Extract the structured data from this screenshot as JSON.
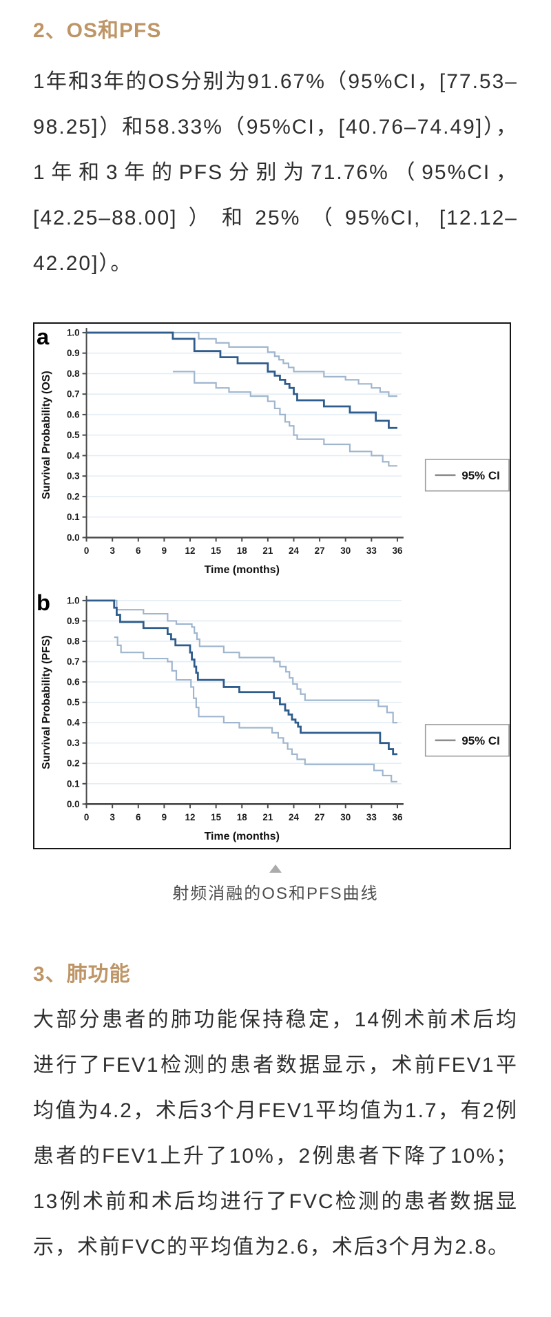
{
  "sections": {
    "os_pfs": {
      "heading": "2、OS和PFS",
      "paragraph": "1年和3年的OS分别为91.67%（95%CI，[77.53–98.25]）和58.33%（95%CI，[40.76–74.49]），1年和3年的PFS分别为71.76%（95%CI，[42.25–88.00]）和25%（95%CI, [12.12–42.20]）。"
    },
    "lung": {
      "heading": "3、肺功能",
      "paragraph": "大部分患者的肺功能保持稳定，14例术前术后均进行了FEV1检测的患者数据显示，术前FEV1平均值为4.2，术后3个月FEV1平均值为1.7，有2例患者的FEV1上升了10%，2例患者下降了10%；13例术前和术后均进行了FVC检测的患者数据显示，术前FVC的平均值为2.6，术后3个月为2.8。"
    }
  },
  "figure": {
    "caption": "射频消融的OS和PFS曲线"
  },
  "colors": {
    "heading": "#BE9566",
    "body_text": "#2E2E2E",
    "caption_text": "#4D4D4D",
    "curve_main": "#2E5C8C",
    "curve_ci": "#9FB6CE",
    "gridline": "#E3EDF4",
    "axis": "#4A4A4A",
    "legend_line": "#8C8C8C",
    "legend_border": "#9C9C9C",
    "figure_border": "#151515",
    "arrow": "#ABABAB"
  },
  "chart_data": [
    {
      "type": "line",
      "subtype": "kaplan-meier-step",
      "panel_label": "a",
      "ylabel": "Survival  Probability (OS)",
      "xlabel": "Time (months)",
      "xlim": [
        0,
        36
      ],
      "ylim": [
        0.0,
        1.0
      ],
      "xticks": [
        0,
        3,
        6,
        9,
        12,
        15,
        18,
        21,
        24,
        27,
        30,
        33,
        36
      ],
      "yticks": [
        0.0,
        0.1,
        0.2,
        0.3,
        0.4,
        0.5,
        0.6,
        0.7,
        0.8,
        0.9,
        1.0
      ],
      "grid": true,
      "legend": {
        "label": "95% CI",
        "position": "right-middle"
      },
      "annotations": {
        "os_1yr": "91.67%",
        "os_3yr": "58.33%"
      },
      "series": [
        {
          "name": "OS estimate",
          "role": "main",
          "start": [
            0,
            1.0
          ],
          "end": 36,
          "steps": [
            [
              10,
              0.97
            ],
            [
              12.5,
              0.91
            ],
            [
              15.5,
              0.88
            ],
            [
              17.5,
              0.85
            ],
            [
              21,
              0.81
            ],
            [
              21.8,
              0.79
            ],
            [
              22.4,
              0.77
            ],
            [
              23,
              0.75
            ],
            [
              23.5,
              0.73
            ],
            [
              24,
              0.7
            ],
            [
              24.4,
              0.67
            ],
            [
              27.5,
              0.64
            ],
            [
              30.5,
              0.61
            ],
            [
              33.5,
              0.57
            ],
            [
              35,
              0.535
            ]
          ]
        },
        {
          "name": "95% CI upper",
          "role": "ci",
          "start": [
            0,
            1.0
          ],
          "end": 36,
          "steps": [
            [
              13,
              0.97
            ],
            [
              15,
              0.95
            ],
            [
              16.5,
              0.93
            ],
            [
              21,
              0.905
            ],
            [
              21.8,
              0.885
            ],
            [
              22.3,
              0.868
            ],
            [
              22.8,
              0.85
            ],
            [
              23.4,
              0.83
            ],
            [
              24,
              0.81
            ],
            [
              27.5,
              0.785
            ],
            [
              30,
              0.77
            ],
            [
              31.5,
              0.75
            ],
            [
              33,
              0.73
            ],
            [
              34,
              0.71
            ],
            [
              35,
              0.69
            ]
          ]
        },
        {
          "name": "95% CI lower",
          "role": "ci",
          "start": [
            10,
            0.81
          ],
          "end": 36,
          "steps": [
            [
              12.5,
              0.755
            ],
            [
              15,
              0.73
            ],
            [
              16.5,
              0.71
            ],
            [
              19,
              0.69
            ],
            [
              21,
              0.665
            ],
            [
              21.8,
              0.63
            ],
            [
              22.4,
              0.6
            ],
            [
              23,
              0.565
            ],
            [
              23.5,
              0.545
            ],
            [
              24,
              0.5
            ],
            [
              24.4,
              0.48
            ],
            [
              27.5,
              0.455
            ],
            [
              30.5,
              0.42
            ],
            [
              33,
              0.4
            ],
            [
              34.3,
              0.37
            ],
            [
              35,
              0.35
            ]
          ]
        }
      ]
    },
    {
      "type": "line",
      "subtype": "kaplan-meier-step",
      "panel_label": "b",
      "ylabel": "Survival Probability (PFS)",
      "xlabel": "Time (months)",
      "xlim": [
        0,
        36
      ],
      "ylim": [
        0.0,
        1.0
      ],
      "xticks": [
        0,
        3,
        6,
        9,
        12,
        15,
        18,
        21,
        24,
        27,
        30,
        33,
        36
      ],
      "yticks": [
        0.0,
        0.1,
        0.2,
        0.3,
        0.4,
        0.5,
        0.6,
        0.7,
        0.8,
        0.9,
        1.0
      ],
      "grid": true,
      "legend": {
        "label": "95% CI",
        "position": "right-middle"
      },
      "annotations": {
        "pfs_1yr": "71.76%",
        "pfs_3yr": "25%"
      },
      "series": [
        {
          "name": "PFS estimate",
          "role": "main",
          "start": [
            0,
            1.0
          ],
          "end": 36,
          "steps": [
            [
              3.2,
              0.965
            ],
            [
              3.5,
              0.93
            ],
            [
              3.9,
              0.895
            ],
            [
              6.6,
              0.865
            ],
            [
              9.4,
              0.835
            ],
            [
              9.8,
              0.81
            ],
            [
              10.3,
              0.78
            ],
            [
              12,
              0.745
            ],
            [
              12.2,
              0.71
            ],
            [
              12.5,
              0.675
            ],
            [
              12.7,
              0.645
            ],
            [
              12.9,
              0.61
            ],
            [
              15.9,
              0.575
            ],
            [
              17.7,
              0.55
            ],
            [
              21.7,
              0.52
            ],
            [
              22.4,
              0.49
            ],
            [
              23,
              0.46
            ],
            [
              23.4,
              0.44
            ],
            [
              23.8,
              0.415
            ],
            [
              24.2,
              0.4
            ],
            [
              24.5,
              0.38
            ],
            [
              24.8,
              0.35
            ],
            [
              34,
              0.3
            ],
            [
              35,
              0.27
            ],
            [
              35.5,
              0.245
            ]
          ]
        },
        {
          "name": "95% CI upper",
          "role": "ci",
          "start": [
            0,
            1.0
          ],
          "end": 36,
          "steps": [
            [
              3.5,
              0.955
            ],
            [
              6.6,
              0.935
            ],
            [
              9.4,
              0.9
            ],
            [
              10.4,
              0.885
            ],
            [
              12.2,
              0.87
            ],
            [
              12.5,
              0.84
            ],
            [
              12.8,
              0.81
            ],
            [
              13.1,
              0.775
            ],
            [
              15.9,
              0.745
            ],
            [
              17.7,
              0.72
            ],
            [
              21.7,
              0.7
            ],
            [
              22.4,
              0.675
            ],
            [
              23.1,
              0.65
            ],
            [
              23.5,
              0.62
            ],
            [
              23.9,
              0.59
            ],
            [
              24.4,
              0.565
            ],
            [
              24.8,
              0.54
            ],
            [
              25.3,
              0.51
            ],
            [
              33.8,
              0.48
            ],
            [
              34.8,
              0.45
            ],
            [
              35.5,
              0.4
            ]
          ]
        },
        {
          "name": "95% CI lower",
          "role": "ci",
          "start": [
            3.2,
            0.82
          ],
          "end": 36,
          "steps": [
            [
              3.6,
              0.78
            ],
            [
              4,
              0.745
            ],
            [
              6.6,
              0.715
            ],
            [
              9.4,
              0.7
            ],
            [
              9.9,
              0.655
            ],
            [
              10.4,
              0.61
            ],
            [
              12.1,
              0.575
            ],
            [
              12.4,
              0.52
            ],
            [
              12.7,
              0.475
            ],
            [
              13,
              0.43
            ],
            [
              15.9,
              0.4
            ],
            [
              17.7,
              0.375
            ],
            [
              21.5,
              0.35
            ],
            [
              22.2,
              0.325
            ],
            [
              22.8,
              0.3
            ],
            [
              23.3,
              0.27
            ],
            [
              23.8,
              0.245
            ],
            [
              24.4,
              0.22
            ],
            [
              25.3,
              0.195
            ],
            [
              33.3,
              0.165
            ],
            [
              34.3,
              0.14
            ],
            [
              35.3,
              0.11
            ]
          ]
        }
      ]
    }
  ]
}
